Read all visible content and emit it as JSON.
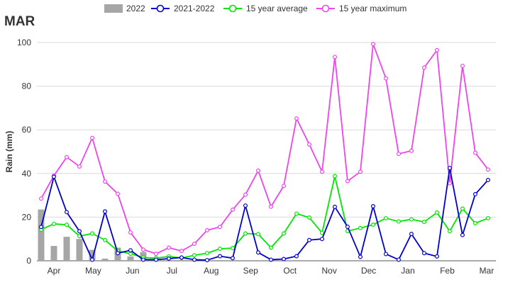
{
  "chart_data": {
    "type": "line",
    "title": "MAR",
    "xlabel": "",
    "ylabel": "Rain (mm)",
    "ylim": [
      0,
      100
    ],
    "yticks": [
      0,
      20,
      40,
      60,
      80,
      100
    ],
    "x_tick_labels": [
      "Apr",
      "May",
      "Jun",
      "Jul",
      "Aug",
      "Sep",
      "Oct",
      "Nov",
      "Dec",
      "Jan",
      "Feb",
      "Mar"
    ],
    "grid": "horizontal",
    "legend_position": "top",
    "bar_series": {
      "name": "2022",
      "color": "#a6a6a6",
      "values": [
        23.5,
        6.8,
        11,
        10,
        5,
        1,
        6,
        2,
        4
      ]
    },
    "series": [
      {
        "name": "2021-2022",
        "color": "#0000cc",
        "values": [
          15.5,
          38.5,
          22.3,
          13.5,
          0.5,
          22.6,
          3.5,
          4.8,
          0.5,
          0.5,
          1,
          1.5,
          0.5,
          0.3,
          2.1,
          1.2,
          25.3,
          3.8,
          0.5,
          0.8,
          2.1,
          9.5,
          10,
          24.7,
          15.6,
          1.8,
          25,
          3.1,
          0.5,
          12.3,
          3.5,
          2,
          42.5,
          11.8,
          30.5,
          37
        ]
      },
      {
        "name": "15 year average",
        "color": "#00e600",
        "values": [
          14.3,
          16.9,
          16.5,
          11.3,
          12.5,
          9.5,
          4.5,
          3.2,
          1.5,
          1.2,
          2,
          1.3,
          2.5,
          3.5,
          5.5,
          5.8,
          12.5,
          12.2,
          6,
          12.5,
          21.6,
          19.8,
          12.8,
          38.8,
          13.6,
          15,
          16.5,
          19.5,
          18,
          19,
          17.8,
          22.1,
          13.5,
          23.9,
          17.2,
          19.5
        ]
      },
      {
        "name": "15 year maximum",
        "color": "#ee44ee",
        "values": [
          28.5,
          39,
          47.5,
          43.2,
          56.3,
          36.3,
          30.7,
          13,
          5.1,
          3.2,
          6,
          4.5,
          7.8,
          14,
          15.5,
          23.4,
          30.3,
          41.3,
          24.8,
          34.3,
          65.2,
          53.3,
          40.8,
          93.4,
          36.5,
          40.8,
          99.3,
          83.6,
          49,
          50.4,
          88.5,
          96.5,
          35.5,
          89.3,
          49.5,
          41.8
        ]
      }
    ]
  }
}
